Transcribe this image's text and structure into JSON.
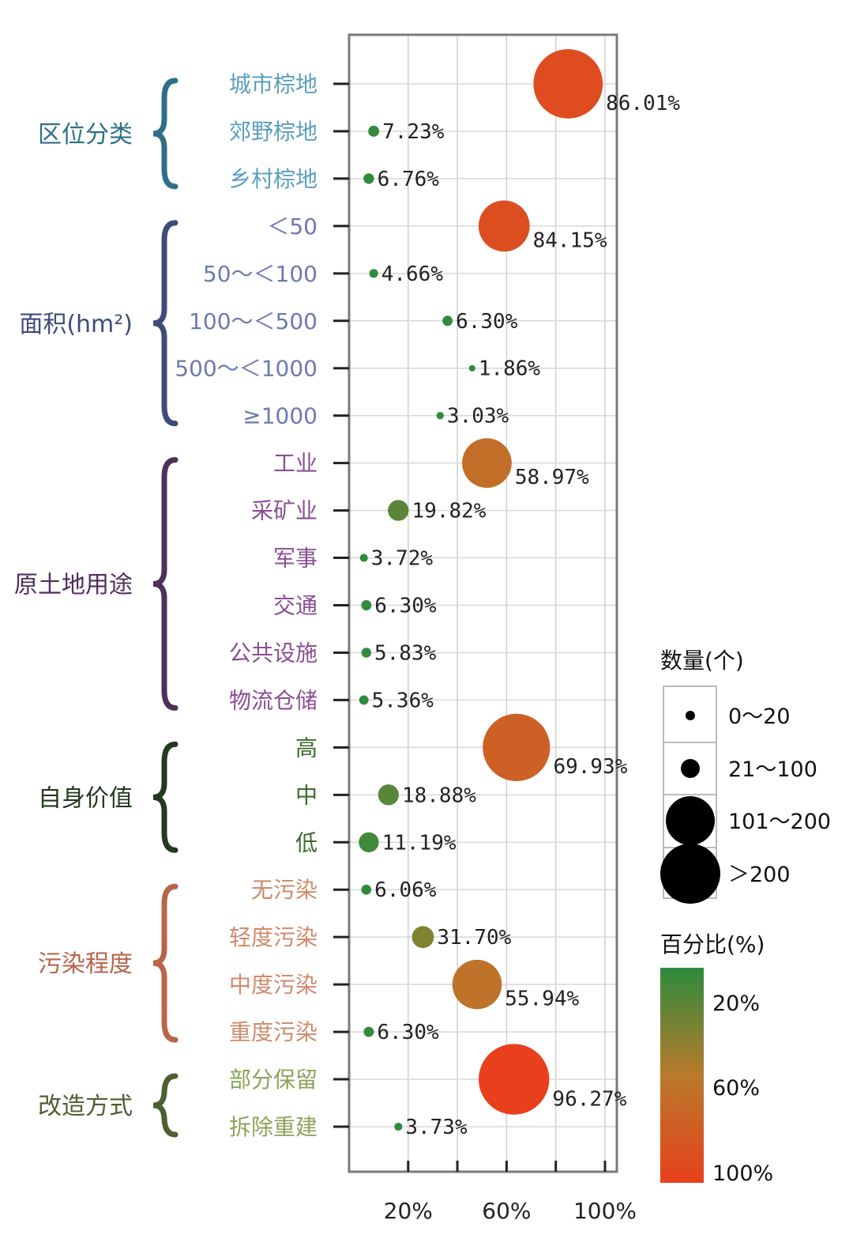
{
  "chart_data": {
    "type": "scatter",
    "x_ticks": [
      "20%",
      "60%",
      "100%"
    ],
    "x_tick_values": [
      20,
      60,
      100
    ],
    "groups": [
      {
        "name": "区位分类",
        "color": "#2f6f86",
        "item_color": "#5b9ec0",
        "items": [
          {
            "label": "城市棕地",
            "x": 85,
            "percent": 86.01,
            "value_label": "86.01%",
            "size": ">200"
          },
          {
            "label": "郊野棕地",
            "x": 6,
            "percent": 7.23,
            "value_label": "7.23%",
            "size": "0~20"
          },
          {
            "label": "乡村棕地",
            "x": 4,
            "percent": 6.76,
            "value_label": "6.76%",
            "size": "0~20"
          }
        ]
      },
      {
        "name": "面积(hm²)",
        "color": "#3d4c7a",
        "item_color": "#6c7bb0",
        "items": [
          {
            "label": "＜50",
            "x": 59,
            "percent": 84.15,
            "value_label": "84.15%",
            "size": "101~200"
          },
          {
            "label": "50～＜100",
            "x": 6,
            "percent": 4.66,
            "value_label": "4.66%",
            "size": "0~20"
          },
          {
            "label": "100～＜500",
            "x": 36,
            "percent": 6.3,
            "value_label": "6.30%",
            "size": "0~20"
          },
          {
            "label": "500～＜1000",
            "x": 46,
            "percent": 1.86,
            "value_label": "1.86%",
            "size": "0~20"
          },
          {
            "label": "≥1000",
            "x": 33,
            "percent": 3.03,
            "value_label": "3.03%",
            "size": "0~20"
          }
        ]
      },
      {
        "name": "原土地用途",
        "color": "#4f2f5c",
        "item_color": "#8a4f93",
        "items": [
          {
            "label": "工业",
            "x": 52,
            "percent": 58.97,
            "value_label": "58.97%",
            "size": "101~200"
          },
          {
            "label": "采矿业",
            "x": 16,
            "percent": 19.82,
            "value_label": "19.82%",
            "size": "21~100"
          },
          {
            "label": "军事",
            "x": 2,
            "percent": 3.72,
            "value_label": "3.72%",
            "size": "0~20"
          },
          {
            "label": "交通",
            "x": 3,
            "percent": 6.3,
            "value_label": "6.30%",
            "size": "0~20"
          },
          {
            "label": "公共设施",
            "x": 3,
            "percent": 5.83,
            "value_label": "5.83%",
            "size": "0~20"
          },
          {
            "label": "物流仓储",
            "x": 2,
            "percent": 5.36,
            "value_label": "5.36%",
            "size": "0~20"
          }
        ]
      },
      {
        "name": "自身价值",
        "color": "#24391f",
        "item_color": "#3e6a2c",
        "items": [
          {
            "label": "高",
            "x": 64,
            "percent": 69.93,
            "value_label": "69.93%",
            "size": ">200"
          },
          {
            "label": "中",
            "x": 12,
            "percent": 18.88,
            "value_label": "18.88%",
            "size": "21~100"
          },
          {
            "label": "低",
            "x": 4,
            "percent": 11.19,
            "value_label": "11.19%",
            "size": "21~100"
          }
        ]
      },
      {
        "name": "污染程度",
        "color": "#b8654a",
        "item_color": "#d08a6c",
        "items": [
          {
            "label": "无污染",
            "x": 3,
            "percent": 6.06,
            "value_label": "6.06%",
            "size": "0~20"
          },
          {
            "label": "轻度污染",
            "x": 26,
            "percent": 31.7,
            "value_label": "31.70%",
            "size": "21~100"
          },
          {
            "label": "中度污染",
            "x": 48,
            "percent": 55.94,
            "value_label": "55.94%",
            "size": "101~200"
          },
          {
            "label": "重度污染",
            "x": 4,
            "percent": 6.3,
            "value_label": "6.30%",
            "size": "0~20"
          }
        ]
      },
      {
        "name": "改造方式",
        "color": "#4f5f34",
        "item_color": "#8aa45a",
        "items": [
          {
            "label": "部分保留",
            "x": 63,
            "percent": 96.27,
            "value_label": "96.27%",
            "size": ">200"
          },
          {
            "label": "拆除重建",
            "x": 16,
            "percent": 3.73,
            "value_label": "3.73%",
            "size": "0~20"
          }
        ]
      }
    ],
    "size_legend": {
      "title": "数量(个)",
      "items": [
        {
          "label": "0～20",
          "key": "0~20"
        },
        {
          "label": "21～100",
          "key": "21~100"
        },
        {
          "label": "101～200",
          "key": "101~200"
        },
        {
          "label": "＞200",
          "key": ">200"
        }
      ]
    },
    "color_legend": {
      "title": "百分比(%)",
      "ticks": [
        "20%",
        "60%",
        "100%"
      ],
      "colors": [
        "#2e8b3e",
        "#b87a2c",
        "#e8401c"
      ]
    },
    "grid": true
  }
}
